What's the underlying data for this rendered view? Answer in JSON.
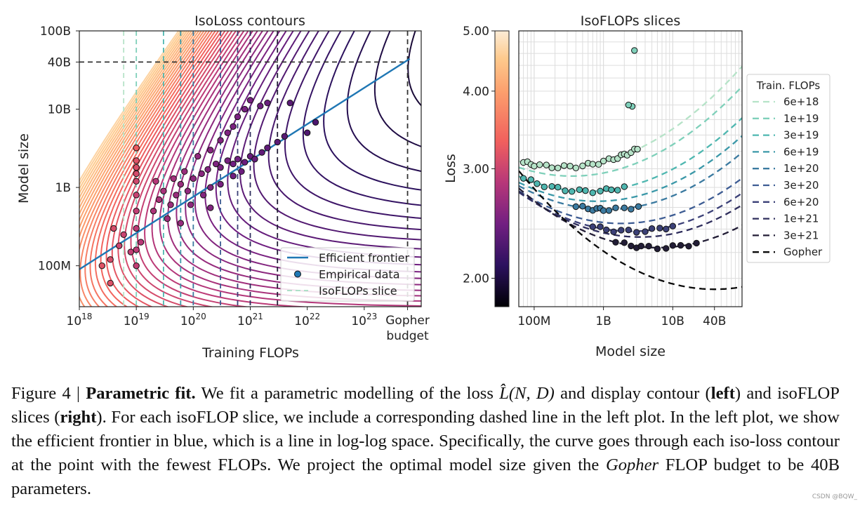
{
  "chart_data": [
    {
      "type": "contour",
      "title": "IsoLoss contours",
      "xlabel": "Training FLOPs",
      "ylabel": "Model size",
      "x_scale": "log",
      "y_scale": "log",
      "xlim": [
        1e+18,
        1e+24
      ],
      "ylim": [
        30000000.0,
        100000000000.0
      ],
      "x_ticks": [
        {
          "value": 1e+18,
          "base": "10",
          "exp": "18"
        },
        {
          "value": 1e+19,
          "base": "10",
          "exp": "19"
        },
        {
          "value": 1e+20,
          "base": "10",
          "exp": "20"
        },
        {
          "value": 1e+21,
          "base": "10",
          "exp": "21"
        },
        {
          "value": 1e+22,
          "base": "10",
          "exp": "22"
        },
        {
          "value": 1e+23,
          "base": "10",
          "exp": "23"
        }
      ],
      "gopher_tick": {
        "value": 5.76e+23,
        "line1": "Gopher",
        "line2": "budget"
      },
      "y_ticks": [
        {
          "value": 100000000.0,
          "label": "100M"
        },
        {
          "value": 1000000000.0,
          "label": "1B"
        },
        {
          "value": 10000000000.0,
          "label": "10B"
        },
        {
          "value": 40000000000.0,
          "label": "40B"
        },
        {
          "value": 100000000000.0,
          "label": "100B"
        }
      ],
      "efficient_frontier": {
        "x": [
          1e+18,
          6.3e+23
        ],
        "y": [
          90000000.0,
          44000000000.0
        ]
      },
      "optimal_projection": {
        "x": 5.76e+23,
        "y": 40000000000.0
      },
      "isoflop_slices": [
        6e+18,
        1e+19,
        3e+19,
        6e+19,
        1e+20,
        3e+20,
        6e+20,
        1e+21,
        3e+21
      ],
      "legend": {
        "position": "lower-right",
        "items": [
          {
            "label": "Efficient frontier",
            "kind": "line",
            "color": "#1f77b4"
          },
          {
            "label": "Empirical data",
            "kind": "marker",
            "color": "#1f77b4"
          },
          {
            "label": "IsoFLOPs slice",
            "kind": "dashed",
            "color": "#aee0c8"
          }
        ]
      },
      "empirical_points": [
        [
          1e+19,
          3200000000.0
        ],
        [
          1e+19,
          2200000000.0
        ],
        [
          1e+19,
          1800000000.0
        ],
        [
          1e+19,
          1500000000.0
        ],
        [
          1e+19,
          1200000000.0
        ],
        [
          1e+19,
          800000000.0
        ],
        [
          1e+19,
          500000000.0
        ],
        [
          1e+19,
          300000000.0
        ],
        [
          1e+19,
          160000000.0
        ],
        [
          1e+19,
          100000000.0
        ],
        [
          4e+18,
          300000000.0
        ],
        [
          5e+18,
          180000000.0
        ],
        [
          3.5e+18,
          120000000.0
        ],
        [
          2.5e+18,
          100000000.0
        ],
        [
          6e+18,
          250000000.0
        ],
        [
          2e+19,
          500000000.0
        ],
        [
          2.5e+19,
          700000000.0
        ],
        [
          3e+19,
          900000000.0
        ],
        [
          2.2e+19,
          1200000000.0
        ],
        [
          3.5e+19,
          400000000.0
        ],
        [
          4e+19,
          600000000.0
        ],
        [
          5e+19,
          800000000.0
        ],
        [
          6e+19,
          1100000000.0
        ],
        [
          8e+19,
          900000000.0
        ],
        [
          1e+20,
          1300000000.0
        ],
        [
          1.4e+20,
          1500000000.0
        ],
        [
          1.8e+20,
          1700000000.0
        ],
        [
          2.5e+20,
          2000000000.0
        ],
        [
          3e+20,
          1800000000.0
        ],
        [
          4e+20,
          2200000000.0
        ],
        [
          5e+20,
          2000000000.0
        ],
        [
          6e+20,
          2300000000.0
        ],
        [
          8e+20,
          2100000000.0
        ],
        [
          1e+21,
          2500000000.0
        ],
        [
          1.2e+21,
          2300000000.0
        ],
        [
          1.6e+21,
          2800000000.0
        ],
        [
          2e+21,
          3200000000.0
        ],
        [
          3e+21,
          3800000000.0
        ],
        [
          3e+20,
          4000000000.0
        ],
        [
          4e+20,
          5000000000.0
        ],
        [
          5e+20,
          6000000000.0
        ],
        [
          6e+20,
          8000000000.0
        ],
        [
          8e+20,
          10000000000.0
        ],
        [
          1e+21,
          13000000000.0
        ],
        [
          1.5e+21,
          11000000000.0
        ],
        [
          2e+21,
          12000000000.0
        ],
        [
          2e+20,
          3000000000.0
        ],
        [
          1.2e+20,
          2500000000.0
        ],
        [
          7e+19,
          1600000000.0
        ],
        [
          4.5e+19,
          1300000000.0
        ],
        [
          9e+19,
          600000000.0
        ],
        [
          1.5e+20,
          800000000.0
        ],
        [
          2e+20,
          1000000000.0
        ],
        [
          3e+20,
          1100000000.0
        ],
        [
          5e+20,
          1400000000.0
        ],
        [
          7e+20,
          1600000000.0
        ],
        [
          4e+21,
          4500000000.0
        ],
        [
          5e+21,
          12000000000.0
        ],
        [
          1e+22,
          5000000000.0
        ],
        [
          6e+19,
          350000000.0
        ],
        [
          2e+20,
          550000000.0
        ],
        [
          1.2e+19,
          200000000.0
        ],
        [
          8e+18,
          150000000.0
        ],
        [
          1.4e+22,
          6800000000.0
        ],
        [
          3.5e+18,
          60000000.0
        ]
      ]
    },
    {
      "type": "line",
      "title": "IsoFLOPs slices",
      "xlabel": "Model size",
      "ylabel": "Loss",
      "x_scale": "log",
      "y_scale": "log",
      "xlim": [
        60000000.0,
        100000000000.0
      ],
      "ylim": [
        1.8,
        5.0
      ],
      "x_ticks": [
        {
          "value": 100000000.0,
          "label": "100M"
        },
        {
          "value": 1000000000.0,
          "label": "1B"
        },
        {
          "value": 10000000000.0,
          "label": "10B"
        },
        {
          "value": 40000000000.0,
          "label": "40B"
        }
      ],
      "y_ticks": [
        {
          "value": 2.0,
          "label": "2.00"
        },
        {
          "value": 3.0,
          "label": "3.00"
        },
        {
          "value": 4.0,
          "label": "4.00"
        },
        {
          "value": 5.0,
          "label": "5.00"
        }
      ],
      "colorbar": {
        "from_color": "#000004",
        "to_color": "#fcfdbf"
      },
      "legend_title": "Train. FLOPs",
      "series": [
        {
          "name": "6e+18",
          "color": "#b6e3c8",
          "min_loss": 3.02,
          "opt_size": 250000000.0,
          "curv": 0.055
        },
        {
          "name": "1e+19",
          "color": "#7fd0ba",
          "min_loss": 2.92,
          "opt_size": 350000000.0,
          "curv": 0.055
        },
        {
          "name": "3e+19",
          "color": "#4fb7b0",
          "min_loss": 2.76,
          "opt_size": 600000000.0,
          "curv": 0.055
        },
        {
          "name": "6e+19",
          "color": "#3b98a8",
          "min_loss": 2.66,
          "opt_size": 800000000.0,
          "curv": 0.055
        },
        {
          "name": "1e+20",
          "color": "#3b7aa0",
          "min_loss": 2.58,
          "opt_size": 1100000000.0,
          "curv": 0.055
        },
        {
          "name": "3e+20",
          "color": "#3d5c93",
          "min_loss": 2.45,
          "opt_size": 1800000000.0,
          "curv": 0.055
        },
        {
          "name": "6e+20",
          "color": "#3b4077",
          "min_loss": 2.38,
          "opt_size": 2500000000.0,
          "curv": 0.055
        },
        {
          "name": "1e+21",
          "color": "#2e2d5c",
          "min_loss": 2.33,
          "opt_size": 3400000000.0,
          "curv": 0.055
        },
        {
          "name": "3e+21",
          "color": "#221d36",
          "min_loss": 2.24,
          "opt_size": 6000000000.0,
          "curv": 0.055
        },
        {
          "name": "Gopher",
          "color": "#0a0a0a",
          "min_loss": 1.92,
          "opt_size": 40000000000.0,
          "curv": 0.055
        }
      ],
      "empirical_points": [
        {
          "series": 0,
          "sizes": [
            70000000.0,
            80000000.0,
            90000000.0,
            100000000.0,
            120000000.0,
            150000000.0,
            180000000.0,
            220000000.0,
            270000000.0,
            330000000.0,
            400000000.0,
            500000000.0,
            600000000.0,
            700000000.0,
            850000000.0,
            1000000000.0,
            1200000000.0,
            1400000000.0,
            1600000000.0,
            1800000000.0,
            2000000000.0,
            2200000000.0,
            2500000000.0,
            2800000000.0,
            3100000000.0
          ]
        },
        {
          "series": 2,
          "sizes": [
            70000000.0,
            90000000.0,
            110000000.0,
            140000000.0,
            180000000.0,
            220000000.0,
            280000000.0,
            350000000.0,
            450000000.0,
            550000000.0,
            700000000.0,
            900000000.0,
            1100000000.0,
            1300000000.0,
            1600000000.0,
            2000000000.0
          ]
        },
        {
          "series": 4,
          "sizes": [
            400000000.0,
            500000000.0,
            600000000.0,
            700000000.0,
            800000000.0,
            900000000.0,
            1000000000.0,
            1200000000.0,
            1500000000.0,
            2000000000.0,
            2500000000.0,
            3200000000.0
          ]
        },
        {
          "series": 6,
          "sizes": [
            700000000.0,
            900000000.0,
            1100000000.0,
            1400000000.0,
            1800000000.0,
            2300000000.0,
            3000000000.0,
            4000000000.0,
            5000000000.0,
            6500000000.0,
            8000000000.0,
            10000000000.0
          ]
        },
        {
          "series": 8,
          "sizes": [
            1500000000.0,
            2000000000.0,
            2500000000.0,
            3000000000.0,
            3500000000.0,
            4500000000.0,
            6000000000.0,
            8000000000.0,
            10000000000.0,
            13000000000.0,
            17000000000.0,
            22000000000.0
          ]
        }
      ],
      "outliers": [
        [
          2800000000.0,
          4.65
        ],
        [
          2600000000.0,
          3.78
        ],
        [
          2300000000.0,
          3.8
        ]
      ]
    }
  ],
  "caption": {
    "figure_label": "Figure 4 |",
    "bold_title": "Parametric fit.",
    "text_1": "We fit a parametric modelling of the loss",
    "math_expr": "L̂(N, D)",
    "text_2": "and display contour (",
    "left_word": "left",
    "text_3": ") and isoFLOP slices (",
    "right_word": "right",
    "text_4": "). For each isoFLOP slice, we include a corresponding dashed line in the left plot. In the left plot, we show the efficient frontier in blue, which is a line in log-log space. Specifically, the curve goes through each iso-loss contour at the point with the fewest FLOPs. We project the optimal model size given the",
    "gopher_word": "Gopher",
    "text_5": "FLOP budget to be 40B parameters."
  },
  "watermark": "CSDN @BQW_"
}
